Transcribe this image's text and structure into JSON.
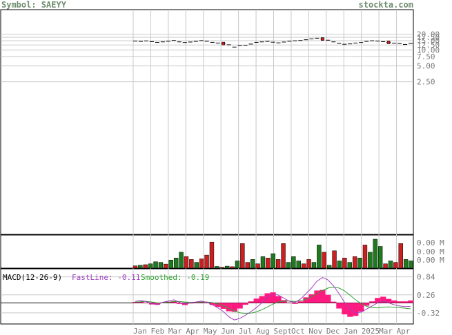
{
  "header": {
    "symbol": "Symbol: SAEYY",
    "site": "stockta.com"
  },
  "colors": {
    "up": "#1f7a1f",
    "down": "#cc1f1f",
    "fast": "#a040c0",
    "smooth": "#30a030",
    "hist": "#ff1a80",
    "grid": "#c8c8c8",
    "frame": "#000000",
    "axis_text": "#7a7a7a"
  },
  "chart_data": [
    {
      "type": "line",
      "title": "",
      "xlabel": "",
      "ylabel": "",
      "scale": "log",
      "ylim": [
        2.0,
        21.0
      ],
      "y_ticks": [
        "20.00",
        "17.50",
        "15.00",
        "12.50",
        "10.00",
        "7.50",
        "5.00",
        "2.50"
      ],
      "y_tick_values": [
        20,
        17.5,
        15,
        12.5,
        10,
        7.5,
        5,
        2.5
      ],
      "x_tick_labels": [
        "Jan",
        "Feb",
        "Mar",
        "Apr",
        "May",
        "Jun",
        "Jul",
        "Aug",
        "Sept",
        "Oct",
        "Nov",
        "Dec",
        "Jan",
        "2025",
        "Mar",
        "Apr"
      ],
      "close": [
        14.8,
        14.6,
        14.9,
        14.4,
        14.0,
        14.3,
        14.7,
        15.2,
        14.3,
        13.9,
        14.2,
        14.6,
        15.1,
        14.7,
        14.0,
        13.6,
        13.3,
        12.6,
        11.4,
        12.1,
        12.3,
        13.0,
        14.0,
        14.3,
        14.6,
        14.1,
        13.7,
        14.2,
        14.7,
        15.0,
        15.2,
        15.7,
        16.3,
        16.8,
        16.2,
        15.4,
        14.3,
        13.4,
        12.9,
        13.1,
        13.6,
        13.9,
        14.6,
        15.0,
        14.8,
        14.4,
        14.0,
        13.5,
        13.3,
        12.8,
        13.4
      ],
      "candle": [
        "u",
        "d",
        "u",
        "d",
        "u",
        "u",
        "u",
        "d",
        "u",
        "d",
        "u",
        "u",
        "u",
        "d",
        "u",
        "d",
        "d",
        "d",
        "d",
        "u",
        "u",
        "u",
        "u",
        "u",
        "u",
        "d",
        "d",
        "u",
        "u",
        "u",
        "u",
        "u",
        "u",
        "u",
        "d",
        "d",
        "d",
        "d",
        "u",
        "u",
        "u",
        "u",
        "u",
        "d",
        "d",
        "d",
        "d",
        "d",
        "d",
        "d",
        "u"
      ]
    },
    {
      "type": "bar",
      "title": "",
      "ylabel": "Volume",
      "y_ticks": [
        "0.00 M",
        "0.00 M",
        "0.00 M"
      ],
      "values": [
        0.08,
        0.1,
        0.12,
        0.15,
        0.22,
        0.2,
        0.14,
        0.28,
        0.35,
        0.55,
        0.4,
        0.3,
        0.2,
        0.32,
        0.45,
        0.9,
        0.06,
        0.03,
        0.07,
        0.05,
        0.25,
        0.85,
        0.2,
        0.3,
        0.15,
        0.4,
        0.35,
        0.5,
        0.3,
        0.85,
        0.2,
        0.4,
        0.25,
        0.15,
        0.3,
        0.2,
        0.8,
        0.55,
        0.1,
        0.6,
        0.25,
        0.35,
        0.2,
        0.4,
        0.35,
        0.8,
        0.55,
        1.0,
        0.75,
        0.15,
        0.25,
        0.2,
        0.85,
        0.3,
        0.25
      ],
      "colors": [
        "d",
        "u",
        "d",
        "u",
        "u",
        "u",
        "d",
        "u",
        "u",
        "u",
        "d",
        "d",
        "u",
        "d",
        "d",
        "d",
        "u",
        "d",
        "u",
        "d",
        "u",
        "d",
        "d",
        "u",
        "d",
        "u",
        "d",
        "u",
        "d",
        "d",
        "u",
        "u",
        "u",
        "d",
        "d",
        "u",
        "u",
        "d",
        "u",
        "d",
        "u",
        "d",
        "u",
        "d",
        "u",
        "d",
        "u",
        "u",
        "u",
        "d",
        "u",
        "d",
        "d",
        "u",
        "u"
      ]
    },
    {
      "type": "line",
      "title": "MACD(12-26-9)",
      "series": [
        {
          "name": "FastLine: -0.11",
          "values": [
            0.05,
            0.08,
            0.04,
            -0.02,
            -0.06,
            0.02,
            0.06,
            0.1,
            0.02,
            -0.04,
            0.0,
            0.03,
            0.06,
            0.02,
            -0.06,
            -0.16,
            -0.28,
            -0.45,
            -0.55,
            -0.5,
            -0.4,
            -0.28,
            -0.15,
            0.0,
            0.18,
            0.3,
            0.25,
            0.15,
            0.05,
            0.02,
            0.12,
            0.3,
            0.48,
            0.7,
            0.82,
            0.74,
            0.55,
            0.3,
            0.02,
            -0.2,
            -0.32,
            -0.3,
            -0.2,
            -0.1,
            0.0,
            0.06,
            0.0,
            -0.06,
            -0.1,
            -0.12,
            -0.11
          ]
        },
        {
          "name": "Smoothed: -0.19",
          "values": [
            0.02,
            0.04,
            0.05,
            0.03,
            0.0,
            0.0,
            0.02,
            0.05,
            0.05,
            0.03,
            0.02,
            0.02,
            0.03,
            0.03,
            0.01,
            -0.03,
            -0.09,
            -0.18,
            -0.26,
            -0.32,
            -0.34,
            -0.33,
            -0.29,
            -0.22,
            -0.13,
            -0.04,
            0.03,
            0.06,
            0.06,
            0.05,
            0.07,
            0.12,
            0.2,
            0.3,
            0.4,
            0.48,
            0.51,
            0.48,
            0.39,
            0.25,
            0.1,
            -0.02,
            -0.11,
            -0.15,
            -0.16,
            -0.14,
            -0.13,
            -0.14,
            -0.15,
            -0.17,
            -0.19
          ]
        }
      ],
      "y_ticks": [
        "0.84",
        "0.26",
        "-0.32"
      ],
      "y_tick_values": [
        0.84,
        0.26,
        -0.32
      ],
      "ylim": [
        -0.68,
        1.1
      ]
    }
  ]
}
